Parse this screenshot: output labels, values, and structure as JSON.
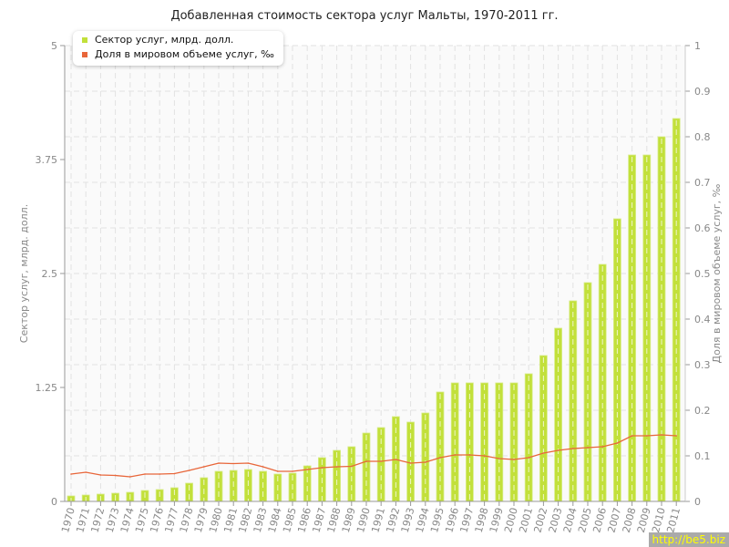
{
  "chart_data": {
    "type": "bar+line",
    "title": "Добавленная стоимость сектора услуг Мальты, 1970-2011 гг.",
    "ylabel": "Сектор услуг, млрд. долл.",
    "y2label": "Доля в мировом объеме услуг, ‰",
    "ylim": [
      0,
      5
    ],
    "y2lim": [
      0,
      1
    ],
    "yticks": [
      "0",
      "1.25",
      "2.5",
      "3.75",
      "5"
    ],
    "y2ticks": [
      "0",
      "0.1",
      "0.2",
      "0.3",
      "0.4",
      "0.5",
      "0.6",
      "0.7",
      "0.8",
      "0.9",
      "1"
    ],
    "grid": true,
    "legend": "top-left",
    "categories": [
      "1970",
      "1971",
      "1972",
      "1973",
      "1974",
      "1975",
      "1976",
      "1977",
      "1978",
      "1979",
      "1980",
      "1981",
      "1982",
      "1983",
      "1984",
      "1985",
      "1986",
      "1987",
      "1988",
      "1989",
      "1990",
      "1991",
      "1992",
      "1993",
      "1994",
      "1995",
      "1996",
      "1997",
      "1998",
      "1999",
      "2000",
      "2001",
      "2002",
      "2003",
      "2004",
      "2005",
      "2006",
      "2007",
      "2008",
      "2009",
      "2010",
      "2011"
    ],
    "series": [
      {
        "name": "Сектор услуг, млрд. долл.",
        "type": "bar",
        "axis": "left",
        "color": "#c2e03a",
        "values": [
          0.06,
          0.07,
          0.08,
          0.09,
          0.1,
          0.12,
          0.13,
          0.15,
          0.2,
          0.26,
          0.33,
          0.34,
          0.35,
          0.33,
          0.3,
          0.31,
          0.39,
          0.48,
          0.56,
          0.6,
          0.75,
          0.81,
          0.93,
          0.87,
          0.97,
          1.2,
          1.3,
          1.3,
          1.3,
          1.3,
          1.3,
          1.4,
          1.6,
          1.9,
          2.2,
          2.4,
          2.6,
          3.1,
          3.8,
          3.8,
          4.0,
          4.2
        ]
      },
      {
        "name": "Доля в мировом объеме услуг, ‰",
        "type": "line",
        "axis": "right",
        "color": "#e8663a",
        "values": [
          0.06,
          0.064,
          0.058,
          0.057,
          0.054,
          0.06,
          0.06,
          0.061,
          0.068,
          0.076,
          0.084,
          0.083,
          0.084,
          0.076,
          0.066,
          0.066,
          0.07,
          0.074,
          0.076,
          0.077,
          0.088,
          0.088,
          0.092,
          0.084,
          0.086,
          0.096,
          0.102,
          0.102,
          0.1,
          0.094,
          0.092,
          0.096,
          0.106,
          0.112,
          0.116,
          0.118,
          0.12,
          0.128,
          0.144,
          0.144,
          0.146,
          0.144
        ]
      }
    ]
  },
  "watermark": "http://be5.biz"
}
